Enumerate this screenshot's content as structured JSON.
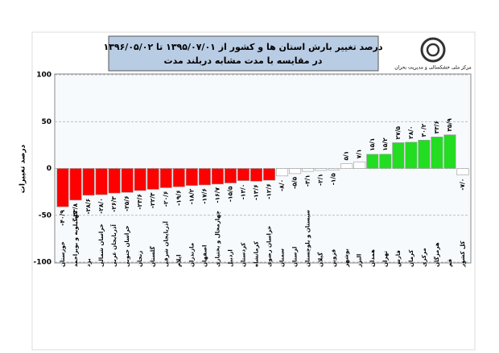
{
  "chart_data": {
    "type": "bar",
    "title": "درصد تغییر بارش استان ها و کشور از ۱۳۹۵/۰۷/۰۱ تا ۱۳۹۶/۰۵/۰۲",
    "subtitle": "در مقایسه با مدت مشابه دربلند مدت",
    "y_label": "درصد تغییرات",
    "categories": [
      "خوزستان",
      "کهگیلویه و بویراحمد",
      "یزد",
      "خراسان شمالی",
      "آذربایجان غربی",
      "خراسان جنوبی",
      "زنجان",
      "گلستان",
      "آذربایجان شرقی",
      "ایلام",
      "مازندران",
      "اصفهان",
      "چهارمحال و بختیاری",
      "اردبیل",
      "کردستان",
      "کرمانشاه",
      "خراسان رضوی",
      "سمنان",
      "لرستان",
      "سیستان و بلوچستان",
      "گیلان",
      "قزوین",
      "بوشهر",
      "البرز",
      "همدان",
      "تهران",
      "فارس",
      "کرمان",
      "مرکزی",
      "هرمزگان",
      "قم",
      "کل کشور"
    ],
    "values": [
      -40.9,
      -33.8,
      -28.6,
      -28.0,
      -26.3,
      -25.6,
      -23.6,
      -22.3,
      -20.6,
      -19.6,
      -18.2,
      -17.6,
      -16.7,
      -15.5,
      -13.0,
      -13.6,
      -12.6,
      -8.0,
      -5.5,
      -3.1,
      -2.1,
      -1.5,
      5.1,
      7.1,
      15.1,
      15.2,
      27.5,
      28.0,
      30.2,
      33.6,
      35.9,
      -7.0
    ],
    "value_labels": [
      "-۴۰/۹",
      "-۳۳/۸",
      "-۲۸/۶",
      "-۲۸/۰",
      "-۲۶/۳",
      "-۲۵/۶",
      "-۲۳/۶",
      "-۲۲/۳",
      "-۲۰/۶",
      "-۱۹/۶",
      "-۱۸/۲",
      "-۱۷/۶",
      "-۱۶/۷",
      "-۱۵/۵",
      "-۱۳/۰",
      "-۱۳/۶",
      "-۱۲/۶",
      "-۸/۰",
      "-۵/۵",
      "-۳/۱",
      "-۲/۱",
      "-۱/۵",
      "۵/۱",
      "۷/۱",
      "۱۵/۱",
      "۱۵/۲",
      "۲۷/۵",
      "۲۸/۰",
      "۳۰/۲",
      "۳۳/۶",
      "۳۵/۹",
      "-۷/۰"
    ],
    "colors": [
      "#ff0000",
      "#ff0000",
      "#ff0000",
      "#ff0000",
      "#ff0000",
      "#ff0000",
      "#ff0000",
      "#ff0000",
      "#ff0000",
      "#ff0000",
      "#ff0000",
      "#ff0000",
      "#ff0000",
      "#ff0000",
      "#ff0000",
      "#ff0000",
      "#ff0000",
      "#ffffff",
      "#ffffff",
      "#ffffff",
      "#ffffff",
      "#ffffff",
      "#ffffff",
      "#ffffff",
      "#22dd22",
      "#22dd22",
      "#22dd22",
      "#22dd22",
      "#22dd22",
      "#22dd22",
      "#22dd22",
      "#ffffff"
    ],
    "ylim": [
      -100,
      100
    ],
    "yticks": [
      -100,
      -50,
      0,
      50,
      100
    ],
    "grid": true
  },
  "logo_text": "مرکز ملی خشکسالی و مدیریت بحران"
}
